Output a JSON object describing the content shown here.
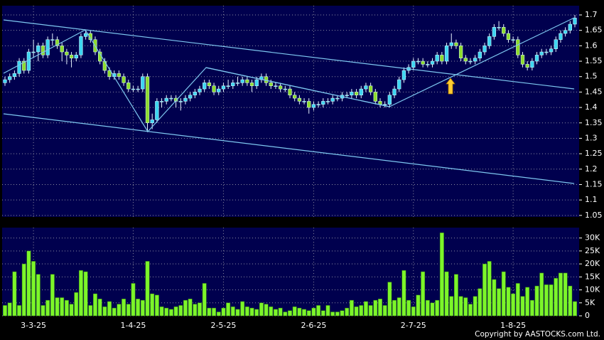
{
  "chart_data": {
    "type": "candlestick",
    "categories": [
      null,
      null,
      null,
      null,
      null,
      null,
      "3-3-25",
      null,
      null,
      null,
      null,
      null,
      null,
      null,
      null,
      null,
      null,
      null,
      null,
      null,
      null,
      null,
      null,
      null,
      null,
      null,
      null,
      "1-4-25",
      null,
      null,
      null,
      null,
      null,
      null,
      null,
      null,
      null,
      null,
      null,
      null,
      null,
      null,
      null,
      null,
      null,
      null,
      "2-5-25",
      null,
      null,
      null,
      null,
      null,
      null,
      null,
      null,
      null,
      null,
      null,
      null,
      null,
      null,
      null,
      null,
      null,
      null,
      "2-6-25",
      null,
      null,
      null,
      null,
      null,
      null,
      null,
      null,
      null,
      null,
      null,
      null,
      null,
      null,
      null,
      null,
      null,
      null,
      null,
      null,
      "2-7-25",
      null,
      null,
      null,
      null,
      null,
      null,
      null,
      null,
      null,
      null,
      null,
      null,
      null,
      null,
      null,
      null,
      null,
      null,
      null,
      null,
      "1-8-25",
      null,
      null,
      null,
      null,
      null,
      null,
      null,
      null,
      null,
      null,
      null,
      null,
      null
    ],
    "open": [
      1.48,
      1.49,
      1.5,
      1.51,
      1.55,
      1.52,
      1.58,
      1.58,
      1.6,
      1.57,
      1.62,
      1.62,
      1.6,
      1.58,
      1.57,
      1.56,
      1.57,
      1.63,
      1.64,
      1.62,
      1.58,
      1.55,
      1.52,
      1.5,
      1.51,
      1.5,
      1.48,
      1.46,
      1.46,
      1.46,
      1.5,
      1.35,
      1.36,
      1.42,
      1.42,
      1.43,
      1.43,
      1.42,
      1.42,
      1.43,
      1.44,
      1.45,
      1.46,
      1.48,
      1.47,
      1.45,
      1.46,
      1.47,
      1.47,
      1.48,
      1.48,
      1.49,
      1.48,
      1.47,
      1.49,
      1.5,
      1.48,
      1.47,
      1.47,
      1.46,
      1.46,
      1.44,
      1.43,
      1.42,
      1.42,
      1.4,
      1.41,
      1.41,
      1.42,
      1.42,
      1.43,
      1.43,
      1.44,
      1.44,
      1.45,
      1.44,
      1.46,
      1.47,
      1.45,
      1.42,
      1.41,
      1.41,
      1.44,
      1.46,
      1.49,
      1.52,
      1.53,
      1.55,
      1.55,
      1.54,
      1.54,
      1.55,
      1.57,
      1.55,
      1.6,
      1.61,
      1.6,
      1.56,
      1.55,
      1.55,
      1.56,
      1.58,
      1.6,
      1.63,
      1.66,
      1.66,
      1.64,
      1.62,
      1.62,
      1.57,
      1.54,
      1.53,
      1.55,
      1.57,
      1.58,
      1.58,
      1.59,
      1.62,
      1.64,
      1.65,
      1.67
    ],
    "high": [
      1.5,
      1.51,
      1.52,
      1.56,
      1.56,
      1.59,
      1.62,
      1.61,
      1.61,
      1.63,
      1.64,
      1.63,
      1.61,
      1.59,
      1.58,
      1.58,
      1.64,
      1.65,
      1.65,
      1.63,
      1.59,
      1.56,
      1.53,
      1.52,
      1.52,
      1.51,
      1.49,
      1.47,
      1.47,
      1.51,
      1.51,
      1.38,
      1.43,
      1.43,
      1.44,
      1.44,
      1.44,
      1.43,
      1.44,
      1.45,
      1.46,
      1.47,
      1.49,
      1.49,
      1.48,
      1.47,
      1.48,
      1.49,
      1.49,
      1.5,
      1.5,
      1.5,
      1.49,
      1.5,
      1.51,
      1.51,
      1.49,
      1.48,
      1.48,
      1.47,
      1.47,
      1.45,
      1.44,
      1.43,
      1.43,
      1.42,
      1.42,
      1.43,
      1.43,
      1.44,
      1.44,
      1.45,
      1.45,
      1.46,
      1.46,
      1.47,
      1.48,
      1.48,
      1.46,
      1.43,
      1.42,
      1.45,
      1.47,
      1.5,
      1.53,
      1.54,
      1.56,
      1.56,
      1.56,
      1.55,
      1.56,
      1.58,
      1.58,
      1.61,
      1.64,
      1.62,
      1.61,
      1.57,
      1.56,
      1.57,
      1.59,
      1.61,
      1.64,
      1.67,
      1.68,
      1.67,
      1.65,
      1.63,
      1.63,
      1.58,
      1.55,
      1.56,
      1.58,
      1.59,
      1.59,
      1.6,
      1.63,
      1.65,
      1.66,
      1.68,
      1.7
    ],
    "low": [
      1.47,
      1.48,
      1.49,
      1.5,
      1.51,
      1.51,
      1.56,
      1.55,
      1.56,
      1.56,
      1.6,
      1.59,
      1.55,
      1.54,
      1.53,
      1.55,
      1.56,
      1.62,
      1.61,
      1.57,
      1.54,
      1.51,
      1.49,
      1.49,
      1.49,
      1.47,
      1.45,
      1.45,
      1.45,
      1.45,
      1.32,
      1.33,
      1.35,
      1.4,
      1.41,
      1.42,
      1.4,
      1.39,
      1.41,
      1.42,
      1.43,
      1.44,
      1.45,
      1.46,
      1.44,
      1.44,
      1.45,
      1.46,
      1.46,
      1.47,
      1.47,
      1.47,
      1.45,
      1.46,
      1.48,
      1.47,
      1.46,
      1.46,
      1.45,
      1.45,
      1.43,
      1.42,
      1.41,
      1.41,
      1.38,
      1.39,
      1.4,
      1.4,
      1.41,
      1.41,
      1.42,
      1.42,
      1.43,
      1.43,
      1.43,
      1.43,
      1.45,
      1.44,
      1.41,
      1.4,
      1.4,
      1.4,
      1.43,
      1.45,
      1.48,
      1.51,
      1.52,
      1.54,
      1.53,
      1.53,
      1.53,
      1.54,
      1.54,
      1.54,
      1.59,
      1.59,
      1.55,
      1.54,
      1.54,
      1.54,
      1.55,
      1.57,
      1.59,
      1.62,
      1.65,
      1.63,
      1.61,
      1.61,
      1.56,
      1.53,
      1.52,
      1.52,
      1.54,
      1.56,
      1.57,
      1.57,
      1.58,
      1.61,
      1.63,
      1.64,
      1.66
    ],
    "close": [
      1.49,
      1.5,
      1.51,
      1.55,
      1.52,
      1.58,
      1.58,
      1.6,
      1.57,
      1.62,
      1.62,
      1.6,
      1.58,
      1.57,
      1.56,
      1.57,
      1.63,
      1.64,
      1.62,
      1.58,
      1.55,
      1.52,
      1.5,
      1.51,
      1.5,
      1.48,
      1.46,
      1.46,
      1.46,
      1.5,
      1.35,
      1.36,
      1.42,
      1.42,
      1.43,
      1.43,
      1.42,
      1.42,
      1.43,
      1.44,
      1.45,
      1.46,
      1.48,
      1.47,
      1.45,
      1.46,
      1.47,
      1.47,
      1.48,
      1.48,
      1.49,
      1.48,
      1.47,
      1.49,
      1.5,
      1.48,
      1.47,
      1.47,
      1.46,
      1.46,
      1.44,
      1.43,
      1.42,
      1.42,
      1.4,
      1.41,
      1.41,
      1.42,
      1.42,
      1.43,
      1.43,
      1.44,
      1.44,
      1.45,
      1.44,
      1.46,
      1.47,
      1.45,
      1.42,
      1.41,
      1.41,
      1.44,
      1.46,
      1.49,
      1.52,
      1.53,
      1.55,
      1.55,
      1.54,
      1.54,
      1.55,
      1.57,
      1.55,
      1.6,
      1.61,
      1.6,
      1.56,
      1.55,
      1.55,
      1.56,
      1.58,
      1.6,
      1.63,
      1.66,
      1.66,
      1.64,
      1.62,
      1.62,
      1.57,
      1.54,
      1.53,
      1.55,
      1.57,
      1.58,
      1.58,
      1.59,
      1.62,
      1.64,
      1.65,
      1.67,
      1.69
    ],
    "up_color": "#3ed6f2",
    "down_color": "#8edc2c",
    "ylim": [
      1.045,
      1.73
    ],
    "yticks": [
      1.05,
      1.1,
      1.15,
      1.2,
      1.25,
      1.3,
      1.35,
      1.4,
      1.45,
      1.5,
      1.55,
      1.6,
      1.65,
      1.7
    ],
    "grid": true,
    "volume": [
      4000,
      5000,
      17000,
      4000,
      20000,
      25000,
      21000,
      16000,
      4000,
      6000,
      16000,
      7000,
      7000,
      6000,
      4500,
      9000,
      17500,
      17000,
      4000,
      8500,
      6500,
      3500,
      5500,
      3000,
      4500,
      6500,
      4500,
      12500,
      6500,
      6000,
      21000,
      8500,
      8000,
      3500,
      3000,
      2500,
      3500,
      4000,
      6000,
      6500,
      4500,
      5000,
      12500,
      3000,
      3000,
      1500,
      3000,
      5000,
      3500,
      2500,
      5500,
      3500,
      3000,
      2500,
      5000,
      4500,
      3500,
      2500,
      3000,
      1500,
      2000,
      3500,
      3000,
      2500,
      2000,
      3000,
      4000,
      2000,
      4000,
      1500,
      1500,
      2000,
      3000,
      6000,
      3500,
      4000,
      5500,
      4000,
      6000,
      6500,
      4000,
      13000,
      6000,
      7000,
      17500,
      6000,
      3500,
      8000,
      17000,
      6000,
      5000,
      6000,
      32000,
      17000,
      7500,
      16000,
      7500,
      7000,
      4500,
      7500,
      10500,
      20000,
      21000,
      14000,
      10500,
      17000,
      11000,
      8500,
      12500,
      7500,
      11000,
      6000,
      11500,
      16500,
      12000,
      12000,
      14500,
      16500,
      16500,
      11500,
      5500
    ],
    "volume_color": "#7cf52a",
    "volume_ylim": [
      0,
      34000
    ],
    "volume_yticks": [
      0,
      {
        "value": 5000,
        "label": "5K"
      },
      {
        "value": 10000,
        "label": "10K"
      },
      {
        "value": 15000,
        "label": "15K"
      },
      {
        "value": 20000,
        "label": "20K"
      },
      {
        "value": 25000,
        "label": "25K"
      },
      {
        "value": 30000,
        "label": "30K"
      }
    ],
    "copyright": "Copyright by AASTOCKS.com Ltd."
  }
}
